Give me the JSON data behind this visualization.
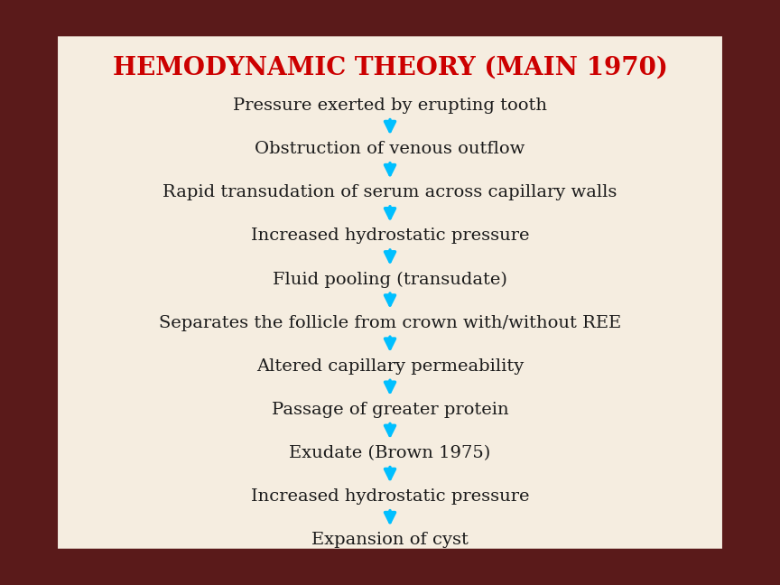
{
  "title": "HEMODYNAMIC THEORY (MAIN 1970)",
  "title_color": "#cc0000",
  "title_fontsize": 20,
  "steps": [
    "Pressure exerted by erupting tooth",
    "Obstruction of venous outflow",
    "Rapid transudation of serum across capillary walls",
    "Increased hydrostatic pressure",
    "Fluid pooling (transudate)",
    "Separates the follicle from crown with/without REE",
    "Altered capillary permeability",
    "Passage of greater protein",
    "Exudate (Brown 1975)",
    "Increased hydrostatic pressure",
    "Expansion of cyst"
  ],
  "text_color": "#1a1a1a",
  "text_fontsize": 14,
  "arrow_color": "#00bfff",
  "background_color": "#f5ede0",
  "border_color": "#5a1a1a",
  "fig_width": 8.64,
  "fig_height": 6.48
}
